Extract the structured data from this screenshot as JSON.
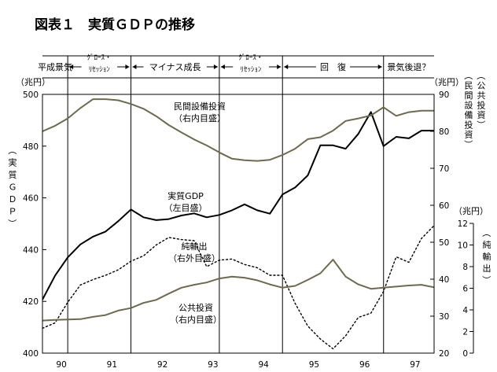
{
  "title": "図表１　実質ＧＤＰの推移",
  "phases": [
    {
      "label": "平成景気",
      "two_line": false
    },
    {
      "label": "ｸﾞﾛｰｽ・\nﾘｾｯｼｮﾝ",
      "two_line": true
    },
    {
      "label": "マイナス成長",
      "two_line": false
    },
    {
      "label": "ｸﾞﾛｰｽ・\nﾘｾｯｼｮﾝ",
      "two_line": true
    },
    {
      "label": "回　復",
      "two_line": false
    },
    {
      "label": "景気後退？",
      "two_line": false
    }
  ],
  "axis_units": {
    "left": "（兆円）",
    "right_inner": "（兆円）",
    "right_outer": "（兆円）"
  },
  "axis_titles": {
    "left": "（実質ＧＤＰ）",
    "right_inner": "（公共投資）（民間設備投資）",
    "right_outer": "（純輸出）"
  },
  "series_labels": {
    "private_investment": [
      "民間設備投資",
      "（右内目盛）"
    ],
    "real_gdp": [
      "実質GDP",
      "（左目盛）"
    ],
    "net_exports": [
      "純輸出",
      "（右外目盛）"
    ],
    "public_investment": [
      "公共投資",
      "（右内目盛）"
    ]
  },
  "colors": {
    "gdp": "#000000",
    "investment": "#6b6b4e",
    "net_exports": "#000000",
    "axis": "#000000"
  },
  "chart_data": {
    "type": "line",
    "x_categories": [
      "90",
      "91",
      "92",
      "93",
      "94",
      "95",
      "96",
      "97"
    ],
    "x_range": [
      1989.875,
      1997.625
    ],
    "phase_boundaries_x": [
      1990.375,
      1991.625,
      1993.375,
      1994.625,
      1996.625
    ],
    "axes": {
      "left": {
        "min": 400,
        "max": 500,
        "ticks": [
          400,
          420,
          440,
          460,
          480,
          500
        ]
      },
      "right_inner": {
        "min": 20,
        "max": 90,
        "ticks": [
          20,
          30,
          40,
          50,
          60,
          70,
          80,
          90
        ]
      },
      "right_outer": {
        "min": 0,
        "max": 12,
        "ticks": [
          0,
          2,
          4,
          6,
          8,
          10,
          12
        ]
      }
    },
    "series": [
      {
        "name": "実質GDP",
        "axis": "left",
        "style": "solid",
        "width": 2,
        "x": [
          1989.875,
          1990.125,
          1990.375,
          1990.625,
          1990.875,
          1991.125,
          1991.375,
          1991.625,
          1991.875,
          1992.125,
          1992.375,
          1992.625,
          1992.875,
          1993.125,
          1993.375,
          1993.625,
          1993.875,
          1994.125,
          1994.375,
          1994.625,
          1994.875,
          1995.125,
          1995.375,
          1995.625,
          1995.875,
          1996.125,
          1996.375,
          1996.625,
          1996.875,
          1997.125,
          1997.375,
          1997.625
        ],
        "y": [
          420.7,
          430,
          437,
          442,
          445,
          447,
          451,
          455.5,
          452.5,
          451.4,
          451.8,
          453.2,
          454,
          452.5,
          453.4,
          455.2,
          457.5,
          455.2,
          453.9,
          461.3,
          464,
          468.7,
          480.3,
          480.3,
          479,
          484.7,
          493.2,
          480,
          483.6,
          483,
          486,
          486
        ]
      },
      {
        "name": "民間設備投資",
        "axis": "right_inner",
        "style": "solid",
        "width": 2,
        "x": [
          1989.875,
          1990.125,
          1990.375,
          1990.625,
          1990.875,
          1991.125,
          1991.375,
          1991.625,
          1991.875,
          1992.125,
          1992.375,
          1992.625,
          1992.875,
          1993.125,
          1993.375,
          1993.625,
          1993.875,
          1994.125,
          1994.375,
          1994.625,
          1994.875,
          1995.125,
          1995.375,
          1995.625,
          1995.875,
          1996.125,
          1996.375,
          1996.625,
          1996.875,
          1997.125,
          1997.375,
          1997.625
        ],
        "y": [
          80,
          81.5,
          83.5,
          86.3,
          88.7,
          88.7,
          88.4,
          87.4,
          86.1,
          84.1,
          81.7,
          79.7,
          77.8,
          76.2,
          74.3,
          72.6,
          72.2,
          72,
          72.3,
          73.6,
          75.3,
          77.9,
          78.4,
          80.2,
          82.8,
          83.5,
          84.3,
          86.5,
          84.2,
          85.2,
          85.6,
          85.6
        ]
      },
      {
        "name": "純輸出",
        "axis": "right_outer",
        "style": "dotted",
        "width": 1.4,
        "x": [
          1989.875,
          1990.125,
          1990.375,
          1990.625,
          1990.875,
          1991.125,
          1991.375,
          1991.625,
          1991.875,
          1992.125,
          1992.375,
          1992.625,
          1992.875,
          1993.125,
          1993.375,
          1993.625,
          1993.875,
          1994.125,
          1994.375,
          1994.625,
          1994.875,
          1995.125,
          1995.375,
          1995.625,
          1995.875,
          1996.125,
          1996.375,
          1996.625,
          1996.875,
          1997.125,
          1997.375,
          1997.625
        ],
        "y": [
          2.3,
          2.8,
          4.7,
          6.3,
          6.8,
          7.2,
          7.7,
          8.5,
          9.0,
          10.0,
          10.7,
          10.5,
          10.4,
          8.0,
          8.6,
          8.7,
          8.2,
          7.9,
          7.2,
          7.2,
          4.6,
          2.5,
          1.3,
          0.4,
          1.6,
          3.3,
          3.7,
          5.7,
          8.9,
          8.4,
          10.6,
          11.8
        ]
      },
      {
        "name": "公共投資",
        "axis": "right_inner",
        "style": "solid",
        "width": 2,
        "x": [
          1989.875,
          1990.125,
          1990.375,
          1990.625,
          1990.875,
          1991.125,
          1991.375,
          1991.625,
          1991.875,
          1992.125,
          1992.375,
          1992.625,
          1992.875,
          1993.125,
          1993.375,
          1993.625,
          1993.875,
          1994.125,
          1994.375,
          1994.625,
          1994.875,
          1995.125,
          1995.375,
          1995.625,
          1995.875,
          1996.125,
          1996.375,
          1996.625,
          1996.875,
          1997.125,
          1997.375,
          1997.625
        ],
        "y": [
          28.8,
          29,
          29.1,
          29.2,
          29.8,
          30.3,
          31.5,
          32.2,
          33.6,
          34.4,
          36.1,
          37.7,
          38.5,
          39.1,
          40.2,
          40.7,
          40.4,
          39.7,
          38.6,
          37.7,
          38.2,
          39.8,
          41.6,
          45.3,
          40.7,
          38.6,
          37.4,
          37.7,
          38.0,
          38.3,
          38.5,
          37.8
        ]
      }
    ]
  }
}
